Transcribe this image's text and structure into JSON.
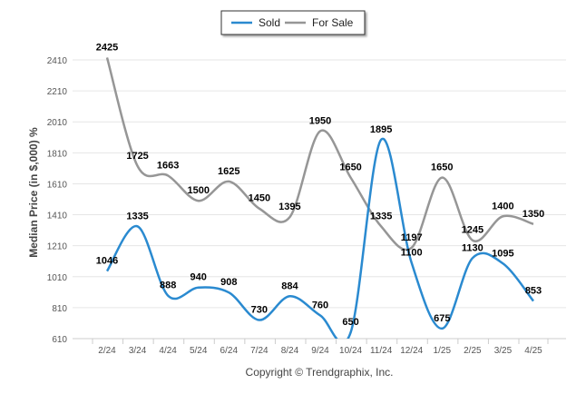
{
  "chart_data": {
    "type": "line",
    "ylabel": "Median Price (in $,000) %",
    "ylim": [
      610,
      2510
    ],
    "yticks": [
      610,
      810,
      1010,
      1210,
      1410,
      1610,
      1810,
      2010,
      2210,
      2410
    ],
    "categories": [
      "2/24",
      "3/24",
      "4/24",
      "5/24",
      "6/24",
      "7/24",
      "8/24",
      "9/24",
      "10/24",
      "11/24",
      "12/24",
      "1/25",
      "2/25",
      "3/25",
      "4/25"
    ],
    "series": [
      {
        "name": "Sold",
        "color": "#2a8ad0",
        "values": [
          1046,
          1335,
          888,
          940,
          908,
          730,
          884,
          760,
          650,
          1895,
          1100,
          675,
          1130,
          1095,
          853
        ]
      },
      {
        "name": "For Sale",
        "color": "#969696",
        "values": [
          2425,
          1725,
          1663,
          1500,
          1625,
          1450,
          1395,
          1950,
          1650,
          1335,
          1197,
          1650,
          1245,
          1400,
          1350
        ]
      }
    ],
    "grid": "horizontal",
    "legend": "top-center",
    "credit": "Copyright © Trendgraphix, Inc."
  }
}
